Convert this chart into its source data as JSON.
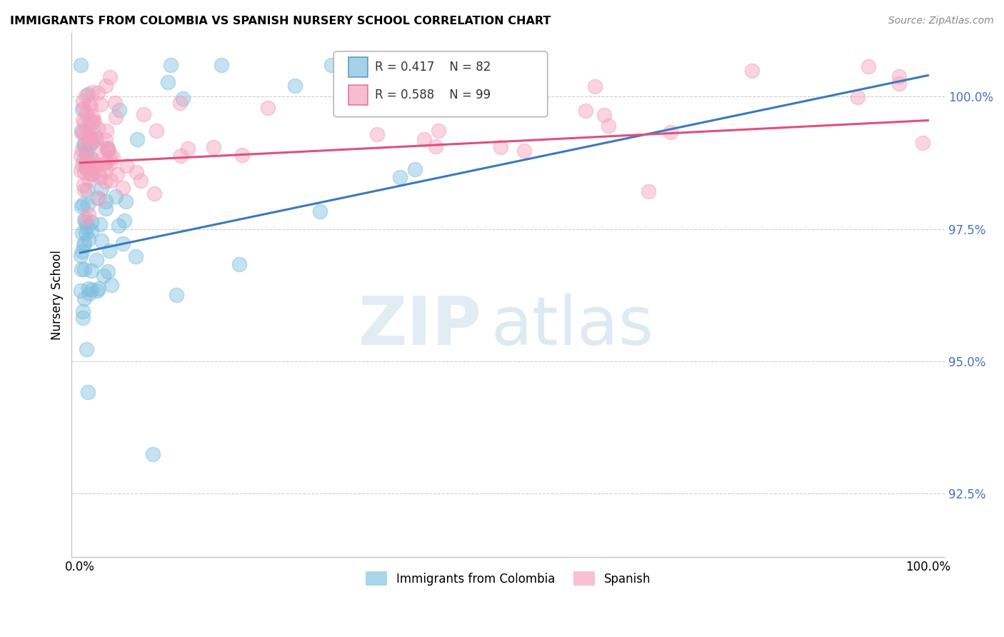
{
  "title": "IMMIGRANTS FROM COLOMBIA VS SPANISH NURSERY SCHOOL CORRELATION CHART",
  "source": "Source: ZipAtlas.com",
  "ylabel": "Nursery School",
  "legend_labels": [
    "Immigrants from Colombia",
    "Spanish"
  ],
  "blue_R": 0.417,
  "blue_N": 82,
  "pink_R": 0.588,
  "pink_N": 99,
  "blue_color": "#7fbfdf",
  "pink_color": "#f5a0bc",
  "blue_line_color": "#3a7abf",
  "pink_line_color": "#e0507a",
  "watermark_zip": "ZIP",
  "watermark_atlas": "atlas",
  "xlim": [
    -1,
    102
  ],
  "ylim": [
    91.3,
    101.2
  ],
  "yticks": [
    92.5,
    95.0,
    97.5,
    100.0
  ],
  "xticks": [
    0,
    25,
    50,
    75,
    100
  ],
  "xtick_labels": [
    "0.0%",
    "",
    "",
    "",
    "100.0%"
  ],
  "ytick_labels": [
    "92.5%",
    "95.0%",
    "97.5%",
    "100.0%"
  ],
  "blue_line_x0": 0,
  "blue_line_y0": 97.05,
  "blue_line_x1": 100,
  "blue_line_y1": 100.4,
  "pink_line_x0": 0,
  "pink_line_y0": 98.75,
  "pink_line_x1": 100,
  "pink_line_y1": 99.55
}
